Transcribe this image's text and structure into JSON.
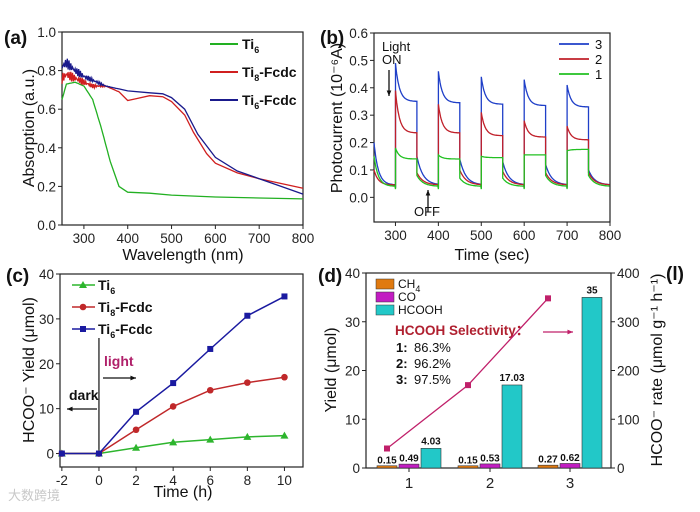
{
  "panel_labels": [
    "(a)",
    "(b)",
    "(c)",
    "(d)",
    "(l)"
  ],
  "watermark": "大数跨境",
  "chart_data": [
    {
      "id": "a",
      "type": "line",
      "xlabel": "Wavelength (nm)",
      "ylabel": "Absorption (a.u.)",
      "xlim": [
        250,
        800
      ],
      "ylim": [
        0,
        1.0
      ],
      "xticks": [
        300,
        400,
        500,
        600,
        700,
        800
      ],
      "yticks": [
        0.0,
        0.2,
        0.4,
        0.6,
        0.8,
        1.0
      ],
      "ytick_decimals": 1,
      "legend": "top-right",
      "series": [
        {
          "name": "Ti6",
          "label": "Ti",
          "sub": "6",
          "suffix": "",
          "color": "#22b022",
          "x": [
            250,
            260,
            280,
            300,
            320,
            340,
            360,
            380,
            400,
            450,
            500,
            600,
            700,
            800
          ],
          "y": [
            0.65,
            0.73,
            0.74,
            0.72,
            0.65,
            0.5,
            0.33,
            0.2,
            0.17,
            0.165,
            0.155,
            0.145,
            0.14,
            0.135
          ]
        },
        {
          "name": "Ti8-Fcdc",
          "label": "Ti",
          "sub": "8",
          "suffix": "-Fcdc",
          "color": "#d01f1f",
          "x": [
            250,
            260,
            280,
            300,
            320,
            350,
            380,
            400,
            420,
            450,
            480,
            500,
            530,
            550,
            580,
            600,
            650,
            700,
            750,
            800
          ],
          "y": [
            0.76,
            0.78,
            0.76,
            0.74,
            0.72,
            0.72,
            0.69,
            0.645,
            0.655,
            0.67,
            0.665,
            0.64,
            0.57,
            0.48,
            0.37,
            0.32,
            0.27,
            0.24,
            0.215,
            0.19
          ]
        },
        {
          "name": "Ti6-Fcdc",
          "label": "Ti",
          "sub": "6",
          "suffix": "-Fcdc",
          "color": "#1a1a8c",
          "x": [
            250,
            260,
            280,
            300,
            320,
            350,
            380,
            400,
            450,
            480,
            500,
            530,
            560,
            600,
            650,
            700,
            750,
            800
          ],
          "y": [
            0.82,
            0.84,
            0.8,
            0.77,
            0.75,
            0.72,
            0.705,
            0.695,
            0.685,
            0.68,
            0.66,
            0.6,
            0.47,
            0.35,
            0.28,
            0.24,
            0.2,
            0.16
          ]
        }
      ]
    },
    {
      "id": "b",
      "type": "line",
      "xlabel": "Time (sec)",
      "ylabel": "Photocurrent (10⁻⁶A)",
      "xlim": [
        250,
        800
      ],
      "ylim": [
        -0.09,
        0.6
      ],
      "xticks": [
        300,
        400,
        500,
        600,
        700,
        800
      ],
      "yticks": [
        0.0,
        0.1,
        0.2,
        0.3,
        0.4,
        0.5,
        0.6
      ],
      "ytick_decimals": 1,
      "legend": "top-right",
      "on_times": [
        300,
        400,
        500,
        600,
        700
      ],
      "on_duration": 50,
      "annotations": {
        "light": "Light",
        "on": "ON",
        "off": "OFF"
      },
      "series": [
        {
          "name": "3",
          "color": "#1f3fc8",
          "start": 0.2,
          "off_end": 0.045,
          "peaks": [
            0.49,
            0.46,
            0.44,
            0.43,
            0.41
          ],
          "on_end": [
            0.35,
            0.345,
            0.34,
            0.335,
            0.33
          ],
          "off_start": [
            0.15,
            0.14,
            0.13,
            0.12,
            0.1
          ]
        },
        {
          "name": "2",
          "color": "#c0202a",
          "start": 0.1,
          "off_end": 0.045,
          "peaks": [
            0.39,
            0.34,
            0.31,
            0.28,
            0.26
          ],
          "on_end": [
            0.235,
            0.235,
            0.225,
            0.22,
            0.21
          ],
          "off_start": [
            0.09,
            0.1,
            0.095,
            0.09,
            0.09
          ]
        },
        {
          "name": "1",
          "color": "#22c022",
          "start": 0.15,
          "off_end": 0.04,
          "peaks": [
            0.18,
            0.155,
            0.15,
            0.155,
            0.17
          ],
          "on_end": [
            0.14,
            0.14,
            0.145,
            0.155,
            0.175
          ],
          "off_start": [
            0.08,
            0.07,
            0.07,
            0.08,
            0.08
          ]
        }
      ]
    },
    {
      "id": "c",
      "type": "line",
      "xlabel": "Time (h)",
      "ylabel": "HCOO⁻ Yield (μmol)",
      "xlim": [
        -2.1,
        11
      ],
      "ylim": [
        -3,
        40
      ],
      "xticks": [
        -2,
        0,
        2,
        4,
        6,
        8,
        10
      ],
      "yticks": [
        0,
        10,
        20,
        30,
        40
      ],
      "ytick_decimals": 0,
      "legend": "top-left",
      "annotations": {
        "light": "light",
        "dark": "dark"
      },
      "x": [
        -2,
        0,
        2,
        4,
        6,
        8,
        10
      ],
      "series": [
        {
          "name": "Ti6",
          "label": "Ti",
          "sub": "6",
          "suffix": "",
          "color": "#2db52d",
          "marker": "triangle",
          "y": [
            0,
            0,
            1.3,
            2.5,
            3.1,
            3.7,
            4.0
          ]
        },
        {
          "name": "Ti8-Fcdc",
          "label": "Ti",
          "sub": "8",
          "suffix": "-Fcdc",
          "color": "#c0282a",
          "marker": "circle",
          "y": [
            0,
            0,
            5.3,
            10.5,
            14.1,
            15.8,
            17
          ]
        },
        {
          "name": "Ti6-Fcdc",
          "label": "Ti",
          "sub": "6",
          "suffix": "-Fcdc",
          "color": "#1a1aa0",
          "marker": "square",
          "y": [
            0,
            0,
            9.3,
            15.7,
            23.3,
            30.7,
            35
          ]
        }
      ]
    },
    {
      "id": "d",
      "type": "bar",
      "xlabel": "",
      "ylabel": "Yield (μmol)",
      "y2label": "HCOO⁻ rate (μmol g⁻¹ h⁻¹)",
      "categories": [
        "1",
        "2",
        "3"
      ],
      "ylim": [
        0,
        40
      ],
      "y2lim": [
        0,
        400
      ],
      "yticks": [
        0,
        10,
        20,
        30,
        40
      ],
      "y2ticks": [
        0,
        100,
        200,
        300,
        400
      ],
      "legend": "top-left",
      "series": [
        {
          "name": "CH4",
          "label": "CH",
          "sub": "4",
          "color": "#e07a10",
          "values": [
            0.15,
            0.15,
            0.27
          ],
          "value_labels": [
            "0.15",
            "0.15",
            "0.27"
          ]
        },
        {
          "name": "CO",
          "label": "CO",
          "sub": "",
          "color": "#c21cc2",
          "values": [
            0.49,
            0.53,
            0.62
          ],
          "value_labels": [
            "0.49",
            "0.53",
            "0.62"
          ]
        },
        {
          "name": "HCOOH",
          "label": "HCOOH",
          "sub": "",
          "color": "#22c8c8",
          "values": [
            4.03,
            17.03,
            35
          ],
          "value_labels": [
            "4.03",
            "17.03",
            "35"
          ]
        }
      ],
      "line": {
        "name": "HCOO- rate",
        "color": "#c0206a",
        "values": [
          40,
          170,
          348
        ]
      },
      "selectivity": {
        "title": "HCOOH Selectivity：",
        "items": [
          {
            "k": "1:",
            "v": "86.3%"
          },
          {
            "k": "2:",
            "v": "96.2%"
          },
          {
            "k": "3:",
            "v": "97.5%"
          }
        ]
      }
    }
  ]
}
